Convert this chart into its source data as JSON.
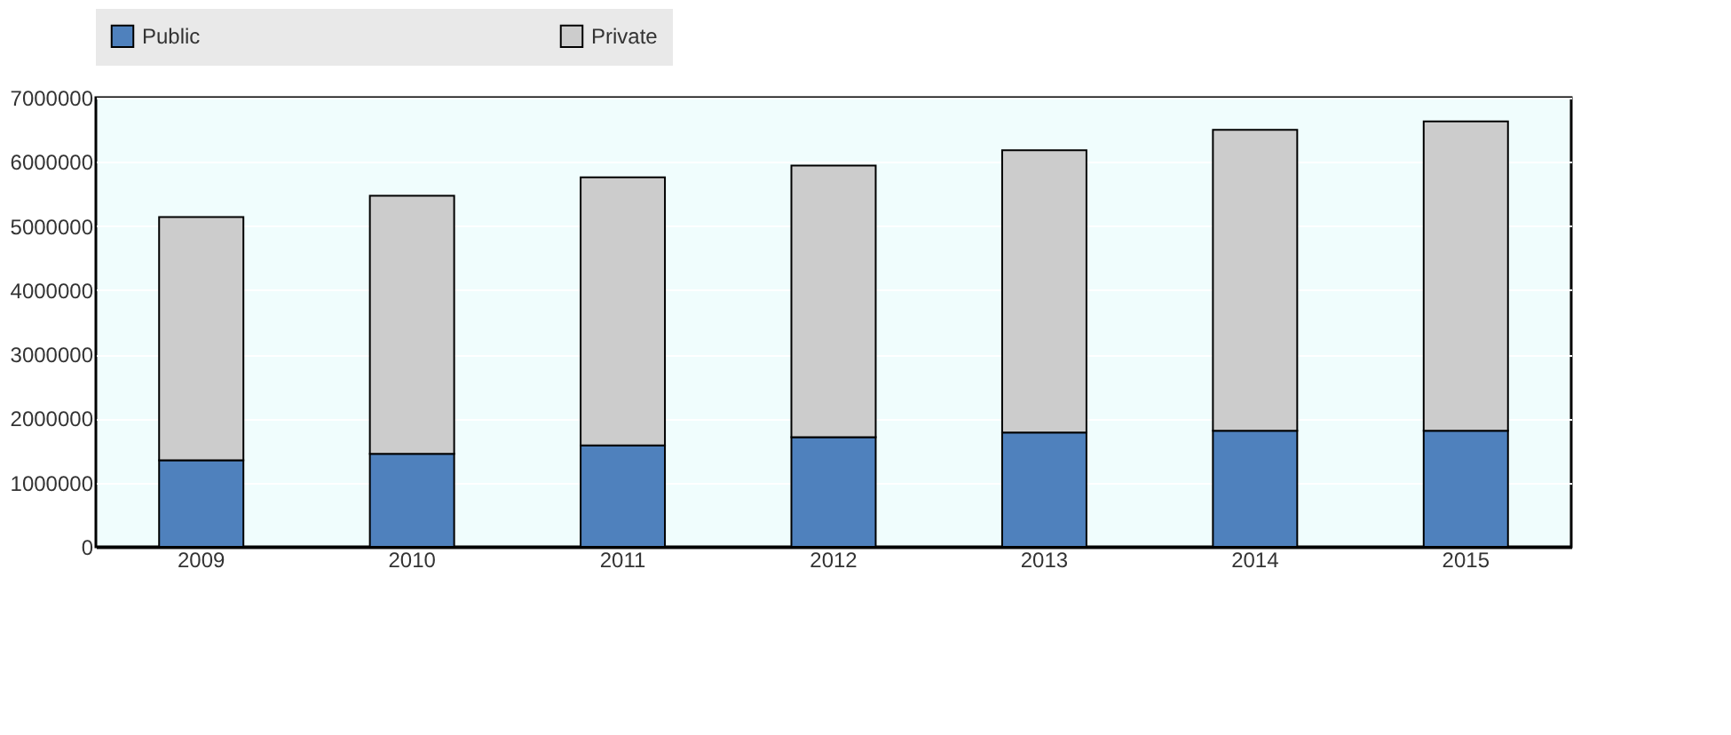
{
  "chart_data": {
    "type": "bar",
    "stacked": true,
    "categories": [
      "2009",
      "2010",
      "2011",
      "2012",
      "2013",
      "2014",
      "2015"
    ],
    "series": [
      {
        "name": "Public",
        "color": "#4f81bd",
        "values": [
          1350000,
          1450000,
          1580000,
          1710000,
          1780000,
          1810000,
          1810000
        ]
      },
      {
        "name": "Private",
        "color": "#cccccc",
        "values": [
          3790000,
          4020000,
          4180000,
          4230000,
          4400000,
          4690000,
          4820000
        ]
      }
    ],
    "ylim": [
      0,
      7000000
    ],
    "yticks": [
      0,
      1000000,
      2000000,
      3000000,
      4000000,
      5000000,
      6000000,
      7000000
    ],
    "grid": "y",
    "legend": "top"
  }
}
